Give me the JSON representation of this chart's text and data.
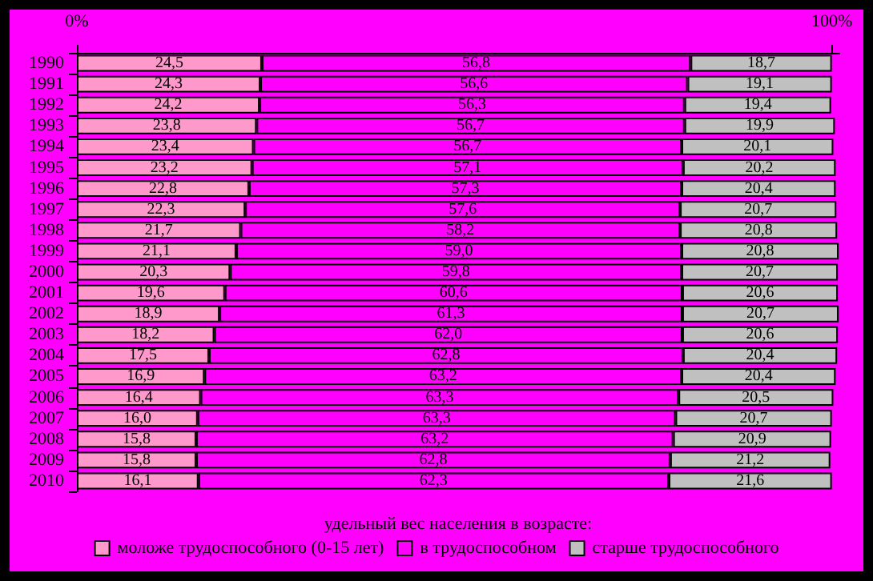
{
  "chart_data": {
    "type": "bar",
    "orientation": "horizontal",
    "stacked": true,
    "xlabel": "удельный вес населения в возрасте:",
    "legend": "bottom",
    "categories": [
      "1990",
      "1991",
      "1992",
      "1993",
      "1994",
      "1995",
      "1996",
      "1997",
      "1998",
      "1999",
      "2000",
      "2001",
      "2002",
      "2003",
      "2004",
      "2005",
      "2006",
      "2007",
      "2008",
      "2009",
      "2010"
    ],
    "xlim": [
      0,
      101
    ],
    "xticks": [
      {
        "value": 0,
        "label": "0%"
      },
      {
        "value": 100,
        "label": "100%"
      }
    ],
    "series": [
      {
        "name": "моложе трудоспособного (0-15 лет)",
        "color": "#ff99cc",
        "values": [
          24.5,
          24.3,
          24.2,
          23.8,
          23.4,
          23.2,
          22.8,
          22.3,
          21.7,
          21.1,
          20.3,
          19.6,
          18.9,
          18.2,
          17.5,
          16.9,
          16.4,
          16.0,
          15.8,
          15.8,
          16.1
        ],
        "value_labels": [
          "24,5",
          "24,3",
          "24,2",
          "23,8",
          "23,4",
          "23,2",
          "22,8",
          "22,3",
          "21,7",
          "21,1",
          "20,3",
          "19,6",
          "18,9",
          "18,2",
          "17,5",
          "16,9",
          "16,4",
          "16,0",
          "15,8",
          "15,8",
          "16,1"
        ]
      },
      {
        "name": "в трудоспособном",
        "color": "#ff00ff",
        "values": [
          56.8,
          56.6,
          56.3,
          56.7,
          56.7,
          57.1,
          57.3,
          57.6,
          58.2,
          59.0,
          59.8,
          60.6,
          61.3,
          62.0,
          62.8,
          63.2,
          63.3,
          63.3,
          63.2,
          62.8,
          62.3
        ],
        "value_labels": [
          "56,8",
          "56,6",
          "56,3",
          "56,7",
          "56,7",
          "57,1",
          "57,3",
          "57,6",
          "58,2",
          "59,0",
          "59,8",
          "60,6",
          "61,3",
          "62,0",
          "62,8",
          "63,2",
          "63,3",
          "63,3",
          "63,2",
          "62,8",
          "62,3"
        ]
      },
      {
        "name": "старше трудоспособного",
        "color": "#c0c0c0",
        "values": [
          18.7,
          19.1,
          19.4,
          19.9,
          20.1,
          20.2,
          20.4,
          20.7,
          20.8,
          20.8,
          20.7,
          20.6,
          20.7,
          20.6,
          20.4,
          20.4,
          20.5,
          20.7,
          20.9,
          21.2,
          21.6
        ],
        "value_labels": [
          "18,7",
          "19,1",
          "19,4",
          "19,9",
          "20,1",
          "20,2",
          "20,4",
          "20,7",
          "20,8",
          "20,8",
          "20,7",
          "20,6",
          "20,7",
          "20,6",
          "20,4",
          "20,4",
          "20,5",
          "20,7",
          "20,9",
          "21,2",
          "21,6"
        ]
      }
    ]
  }
}
